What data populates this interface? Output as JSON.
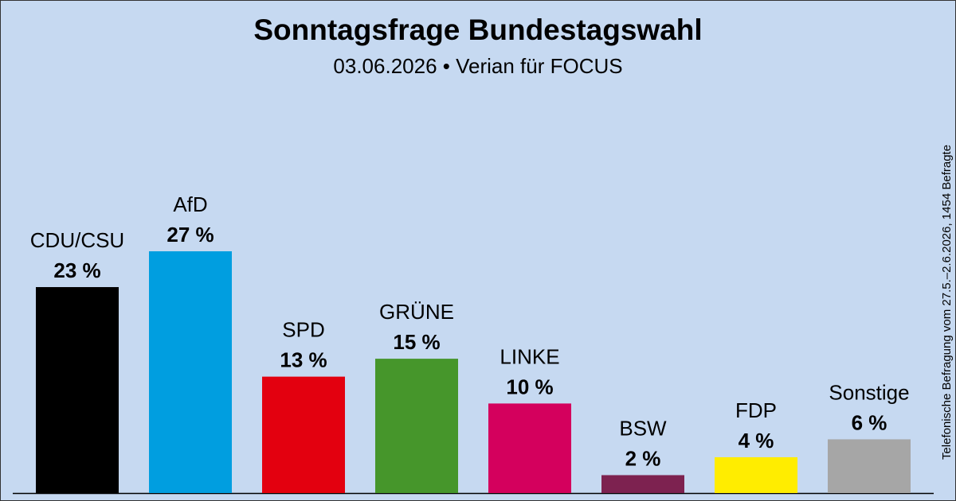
{
  "chart_data": {
    "type": "bar",
    "title": "Sonntagsfrage Bundestagswahl",
    "subtitle": "03.06.2026 • Verian für FOCUS",
    "note": "Telefonische Befragung vom 27.5.–2.6.2026, 1454 Befragte",
    "categories": [
      "CDU/CSU",
      "AfD",
      "SPD",
      "GRÜNE",
      "LINKE",
      "BSW",
      "FDP",
      "Sonstige"
    ],
    "values": [
      23,
      27,
      13,
      15,
      10,
      2,
      4,
      6
    ],
    "value_labels": [
      "23 %",
      "27 %",
      "13 %",
      "15 %",
      "10 %",
      "2 %",
      "4 %",
      "6 %"
    ],
    "colors": [
      "#000000",
      "#009ee0",
      "#e3000f",
      "#46962b",
      "#d4005d",
      "#7d2250",
      "#ffed00",
      "#a6a6a6"
    ]
  }
}
